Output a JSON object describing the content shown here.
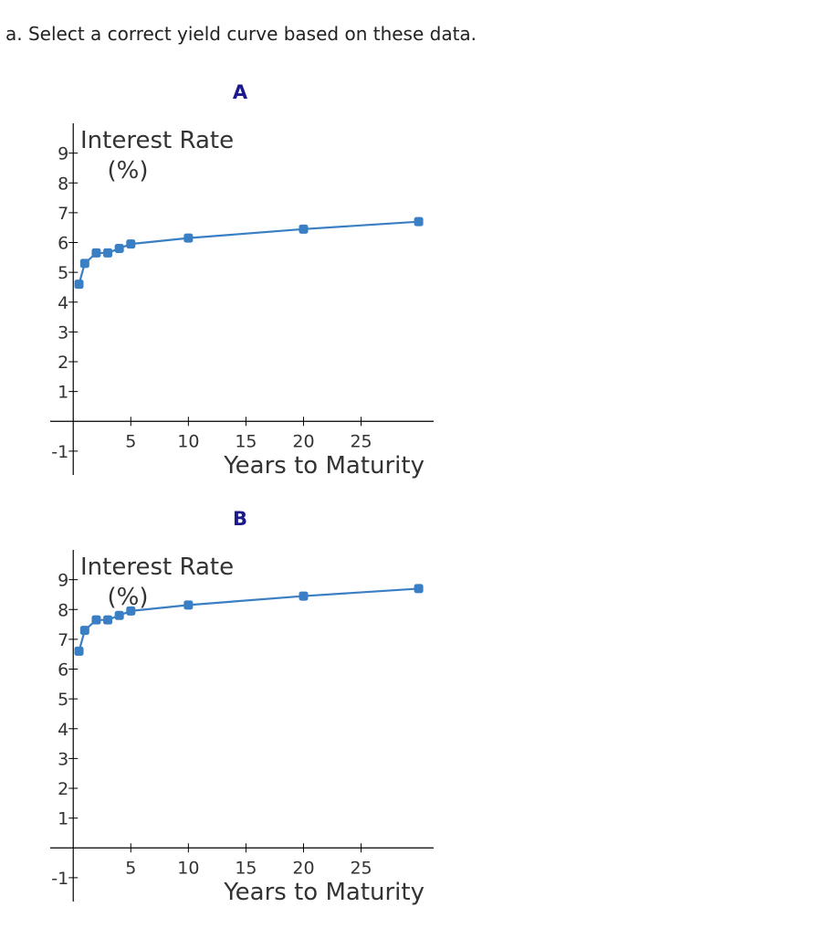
{
  "question": "a. Select a correct yield curve based on these data.",
  "chart_data": [
    {
      "type": "line",
      "title": "A",
      "xlabel": "Years to Maturity",
      "ylabel": [
        "Interest Rate",
        "(%)"
      ],
      "x": [
        0.5,
        1,
        2,
        3,
        4,
        5,
        10,
        20,
        30
      ],
      "series": [
        {
          "color": "#3a7fc4",
          "values": [
            4.6,
            5.3,
            5.65,
            5.65,
            5.8,
            5.95,
            6.15,
            6.45,
            6.7
          ]
        }
      ],
      "xlim": [
        -2,
        31.3
      ],
      "ylim": [
        -1.8,
        10
      ],
      "xticks": [
        5,
        10,
        15,
        20,
        25
      ],
      "yticks": [
        -1,
        1,
        2,
        3,
        4,
        5,
        6,
        7,
        8,
        9
      ]
    },
    {
      "type": "line",
      "title": "B",
      "xlabel": "Years to Maturity",
      "ylabel": [
        "Interest Rate",
        "(%)"
      ],
      "x": [
        0.5,
        1,
        2,
        3,
        4,
        5,
        10,
        20,
        30
      ],
      "series": [
        {
          "color": "#3a7fc4",
          "values": [
            6.6,
            7.3,
            7.65,
            7.65,
            7.8,
            7.95,
            8.15,
            8.45,
            8.7
          ]
        }
      ],
      "xlim": [
        -2,
        31.3
      ],
      "ylim": [
        -1.8,
        10
      ],
      "xticks": [
        5,
        10,
        15,
        20,
        25
      ],
      "yticks": [
        -1,
        1,
        2,
        3,
        4,
        5,
        6,
        7,
        8,
        9
      ]
    }
  ]
}
